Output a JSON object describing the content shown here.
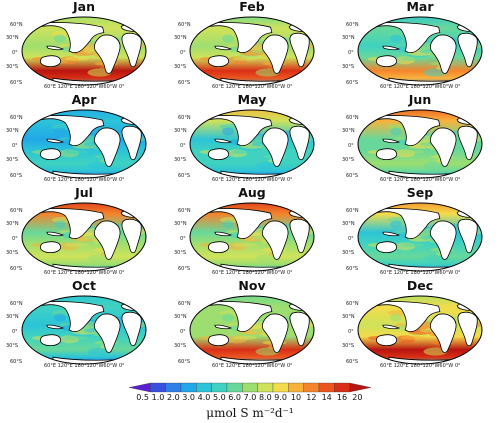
{
  "panels": [
    {
      "month": "Jan",
      "intensity": 0.62,
      "hot": "south"
    },
    {
      "month": "Feb",
      "intensity": 0.6,
      "hot": "south"
    },
    {
      "month": "Mar",
      "intensity": 0.45,
      "hot": "south"
    },
    {
      "month": "Apr",
      "intensity": 0.35,
      "hot": "none"
    },
    {
      "month": "May",
      "intensity": 0.38,
      "hot": "north"
    },
    {
      "month": "Jun",
      "intensity": 0.5,
      "hot": "north"
    },
    {
      "month": "Jul",
      "intensity": 0.55,
      "hot": "north"
    },
    {
      "month": "Aug",
      "intensity": 0.55,
      "hot": "north"
    },
    {
      "month": "Sep",
      "intensity": 0.42,
      "hot": "north"
    },
    {
      "month": "Oct",
      "intensity": 0.4,
      "hot": "none"
    },
    {
      "month": "Nov",
      "intensity": 0.58,
      "hot": "south"
    },
    {
      "month": "Dec",
      "intensity": 0.68,
      "hot": "south"
    }
  ],
  "lat_labels": [
    "60°N",
    "30°N",
    "0°",
    "30°S",
    "60°S"
  ],
  "lon_labels": "60°E 120°E 180°120°W60°W  0°",
  "legend": {
    "ticks": [
      "0.5",
      "1.0",
      "2.0",
      "3.0",
      "4.0",
      "5.0",
      "6.0",
      "7.0",
      "8.0",
      "9.0",
      "10",
      "12",
      "14",
      "16",
      "20"
    ],
    "colors": [
      "#5a1fd0",
      "#3a4fe0",
      "#2f7fe8",
      "#22a8e8",
      "#2cc4d8",
      "#3fd2c0",
      "#68d89a",
      "#9ede70",
      "#cfe25a",
      "#f3dc4a",
      "#f8b23c",
      "#f5842c",
      "#ec5520",
      "#d92f16",
      "#b81410"
    ],
    "unit": "μmol S m⁻²d⁻¹"
  }
}
